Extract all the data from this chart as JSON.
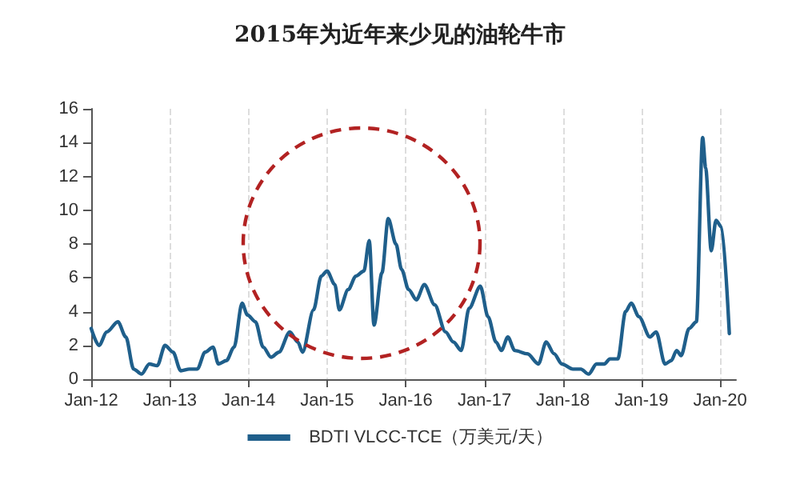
{
  "chart_data": {
    "type": "line",
    "title": "2015年为近年来少见的油轮牛市",
    "x": [
      "2012-01-01",
      "2012-02-06",
      "2012-03-14",
      "2012-05-04",
      "2012-06-10",
      "2012-07-16",
      "2012-08-22",
      "2012-09-27",
      "2012-11-03",
      "2012-12-09",
      "2013-01-15",
      "2013-02-20",
      "2013-04-01",
      "2013-05-08",
      "2013-06-13",
      "2013-07-20",
      "2013-08-14",
      "2013-09-20",
      "2013-10-26",
      "2013-12-02",
      "2013-12-27",
      "2014-02-02",
      "2014-03-10",
      "2014-04-16",
      "2014-05-22",
      "2014-07-12",
      "2014-08-18",
      "2014-09-09",
      "2014-10-30",
      "2014-12-05",
      "2015-01-01",
      "2015-02-06",
      "2015-02-27",
      "2015-04-09",
      "2015-05-15",
      "2015-06-21",
      "2015-07-16",
      "2015-08-07",
      "2015-09-13",
      "2015-10-12",
      "2015-11-17",
      "2015-12-13",
      "2016-01-15",
      "2016-02-20",
      "2016-03-28",
      "2016-05-15",
      "2016-07-04",
      "2016-08-10",
      "2016-09-15",
      "2016-10-22",
      "2016-12-13",
      "2017-01-18",
      "2017-02-24",
      "2017-03-21",
      "2017-04-20",
      "2017-05-22",
      "2017-07-20",
      "2017-09-09",
      "2017-10-15",
      "2017-11-21",
      "2017-12-27",
      "2018-02-16",
      "2018-03-25",
      "2018-04-30",
      "2018-06-06",
      "2018-07-12",
      "2018-08-07",
      "2018-09-13",
      "2018-10-19",
      "2018-11-14",
      "2018-12-20",
      "2019-02-09",
      "2019-03-10",
      "2019-04-20",
      "2019-05-19",
      "2019-06-13",
      "2019-07-04",
      "2019-08-10",
      "2019-09-13",
      "2019-10-12",
      "2019-10-26",
      "2019-11-21",
      "2019-12-13",
      "2020-01-08",
      "2020-02-13"
    ],
    "series": [
      {
        "name": "BDTI VLCC-TCE（万美元/天）",
        "color": "#1f5f8b",
        "values": [
          3.0,
          2.0,
          2.8,
          3.4,
          2.5,
          0.6,
          0.3,
          0.9,
          0.8,
          2.0,
          1.6,
          0.5,
          0.6,
          0.6,
          1.6,
          1.9,
          0.9,
          1.1,
          1.9,
          4.5,
          3.8,
          3.4,
          1.9,
          1.3,
          1.6,
          2.8,
          2.2,
          1.6,
          4.1,
          6.1,
          6.4,
          5.6,
          4.1,
          5.3,
          6.1,
          6.4,
          8.2,
          3.2,
          6.3,
          9.5,
          8.0,
          6.5,
          5.3,
          4.7,
          5.6,
          4.4,
          2.8,
          2.2,
          1.7,
          4.2,
          5.5,
          3.7,
          2.2,
          1.7,
          2.5,
          1.7,
          1.5,
          0.9,
          2.2,
          1.5,
          0.9,
          0.6,
          0.6,
          0.3,
          0.9,
          0.9,
          1.2,
          1.2,
          4.0,
          4.5,
          3.7,
          2.5,
          2.8,
          0.9,
          1.1,
          1.7,
          1.4,
          3.0,
          3.4,
          14.3,
          12.5,
          7.6,
          9.4,
          9.0,
          2.7
        ]
      }
    ],
    "xlim": [
      "2012-01-01",
      "2020-03-15"
    ],
    "xticks": [
      {
        "value": "2012-01-01",
        "label": "Jan-12"
      },
      {
        "value": "2013-01-01",
        "label": "Jan-13"
      },
      {
        "value": "2014-01-01",
        "label": "Jan-14"
      },
      {
        "value": "2015-01-01",
        "label": "Jan-15"
      },
      {
        "value": "2016-01-01",
        "label": "Jan-16"
      },
      {
        "value": "2017-01-01",
        "label": "Jan-17"
      },
      {
        "value": "2018-01-01",
        "label": "Jan-18"
      },
      {
        "value": "2019-01-01",
        "label": "Jan-19"
      },
      {
        "value": "2020-01-01",
        "label": "Jan-20"
      }
    ],
    "ylim": [
      0,
      16
    ],
    "yticks": [
      0,
      2,
      4,
      6,
      8,
      10,
      12,
      14,
      16
    ],
    "grid": "x",
    "legend": "bottom",
    "marker": "none",
    "line_style": "solid"
  }
}
